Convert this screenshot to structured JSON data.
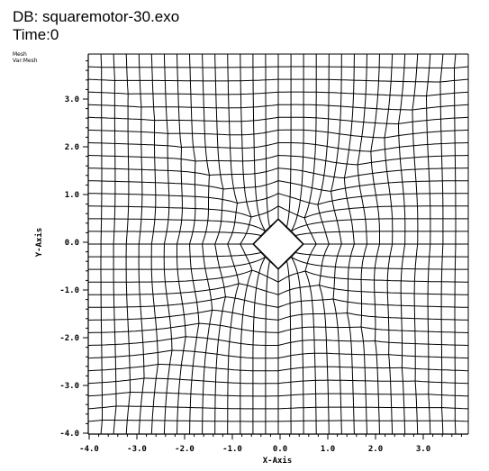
{
  "header": {
    "db_label": "DB: squaremotor-30.exo",
    "time_label": "Time:0"
  },
  "legend": {
    "plot_type": "Mesh",
    "var_label": "Var:Mesh"
  },
  "plot": {
    "xlabel": "X-Axis",
    "ylabel": "Y-Axis",
    "xlim": [
      -4.0,
      4.0
    ],
    "ylim": [
      -4.0,
      4.0
    ],
    "x_tick_labels": [
      "-4.0",
      "-3.0",
      "-2.0",
      "-1.0",
      "0.0",
      "1.0",
      "2.0",
      "3.0"
    ],
    "y_tick_labels": [
      "-4.0",
      "-3.0",
      "-2.0",
      "-1.0",
      "0.0",
      "1.0",
      "2.0",
      "3.0"
    ],
    "line_color": "#000000",
    "background_color": "#ffffff",
    "mesh": "structured quad mesh of a square motor cross-section with a diamond-shaped hole at the center"
  }
}
